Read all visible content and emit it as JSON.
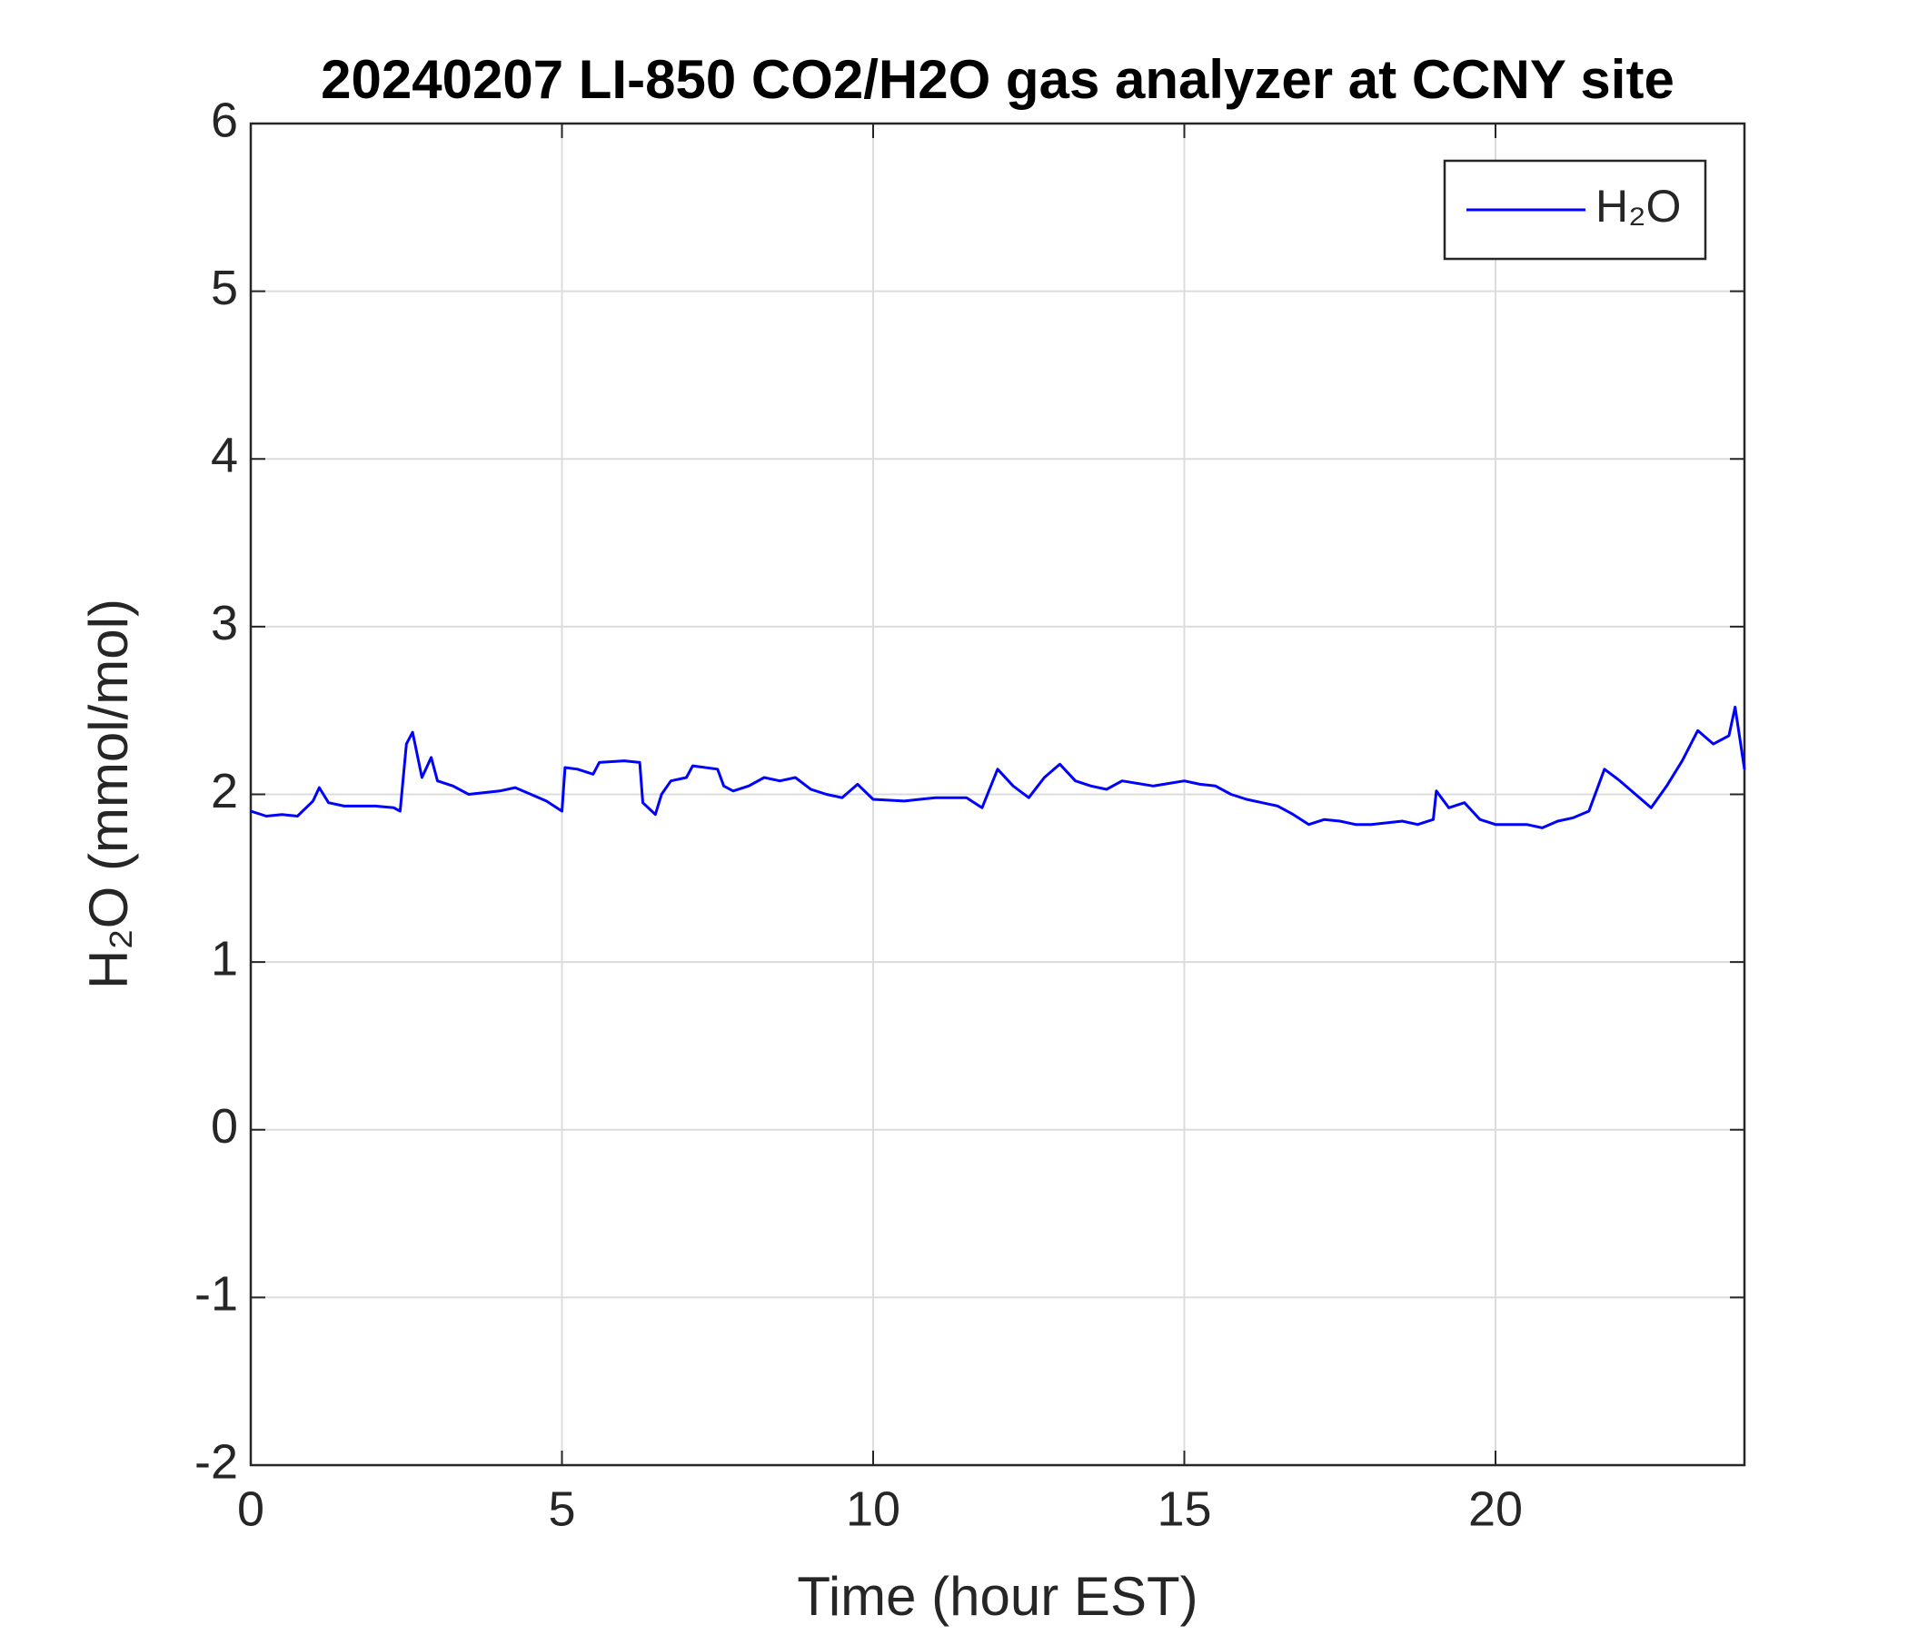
{
  "chart_data": {
    "type": "line",
    "title": "20240207 LI-850 CO2/H2O gas analyzer at CCNY site",
    "xlabel": "Time (hour EST)",
    "ylabel": "H₂O (mmol/mol)",
    "x": [
      0,
      0.25,
      0.5,
      0.75,
      1.0,
      1.1,
      1.25,
      1.5,
      2.0,
      2.3,
      2.4,
      2.5,
      2.6,
      2.75,
      2.9,
      3.0,
      3.25,
      3.5,
      4.0,
      4.25,
      4.5,
      4.75,
      5.0,
      5.05,
      5.25,
      5.5,
      5.6,
      6.0,
      6.25,
      6.3,
      6.5,
      6.6,
      6.75,
      7.0,
      7.1,
      7.5,
      7.6,
      7.75,
      8.0,
      8.25,
      8.5,
      8.75,
      9.0,
      9.25,
      9.5,
      9.75,
      10.0,
      10.5,
      11.0,
      11.5,
      11.75,
      12.0,
      12.25,
      12.5,
      12.75,
      13.0,
      13.25,
      13.5,
      13.75,
      14.0,
      14.5,
      15.0,
      15.25,
      15.5,
      15.75,
      16.0,
      16.25,
      16.5,
      16.75,
      17.0,
      17.25,
      17.5,
      17.75,
      18.0,
      18.5,
      18.75,
      19.0,
      19.05,
      19.25,
      19.5,
      19.75,
      20.0,
      20.5,
      20.75,
      21.0,
      21.25,
      21.5,
      21.75,
      22.0,
      22.25,
      22.5,
      22.75,
      23.0,
      23.25,
      23.5,
      23.75,
      23.85,
      24.0
    ],
    "series": [
      {
        "name": "H₂O",
        "color": "#0000ff",
        "values": [
          1.9,
          1.87,
          1.88,
          1.87,
          1.96,
          2.04,
          1.95,
          1.93,
          1.93,
          1.92,
          1.9,
          2.3,
          2.37,
          2.1,
          2.22,
          2.08,
          2.05,
          2.0,
          2.02,
          2.04,
          2.0,
          1.96,
          1.9,
          2.16,
          2.15,
          2.12,
          2.19,
          2.2,
          2.19,
          1.95,
          1.88,
          2.0,
          2.08,
          2.1,
          2.17,
          2.15,
          2.05,
          2.02,
          2.05,
          2.1,
          2.08,
          2.1,
          2.03,
          2.0,
          1.98,
          2.06,
          1.97,
          1.96,
          1.98,
          1.98,
          1.92,
          2.15,
          2.05,
          1.98,
          2.1,
          2.18,
          2.08,
          2.05,
          2.03,
          2.08,
          2.05,
          2.08,
          2.06,
          2.05,
          2.0,
          1.97,
          1.95,
          1.93,
          1.88,
          1.82,
          1.85,
          1.84,
          1.82,
          1.82,
          1.84,
          1.82,
          1.85,
          2.02,
          1.92,
          1.95,
          1.85,
          1.82,
          1.82,
          1.8,
          1.84,
          1.86,
          1.9,
          2.15,
          2.08,
          2.0,
          1.92,
          2.05,
          2.2,
          2.38,
          2.3,
          2.35,
          2.52,
          2.15
        ]
      }
    ],
    "xlim": [
      0,
      24
    ],
    "xticks": [
      0,
      5,
      10,
      15,
      20
    ],
    "ylim": [
      -2,
      6
    ],
    "yticks": [
      -2,
      -1,
      0,
      1,
      2,
      3,
      4,
      5,
      6
    ],
    "grid": true,
    "legend": "northeast"
  }
}
